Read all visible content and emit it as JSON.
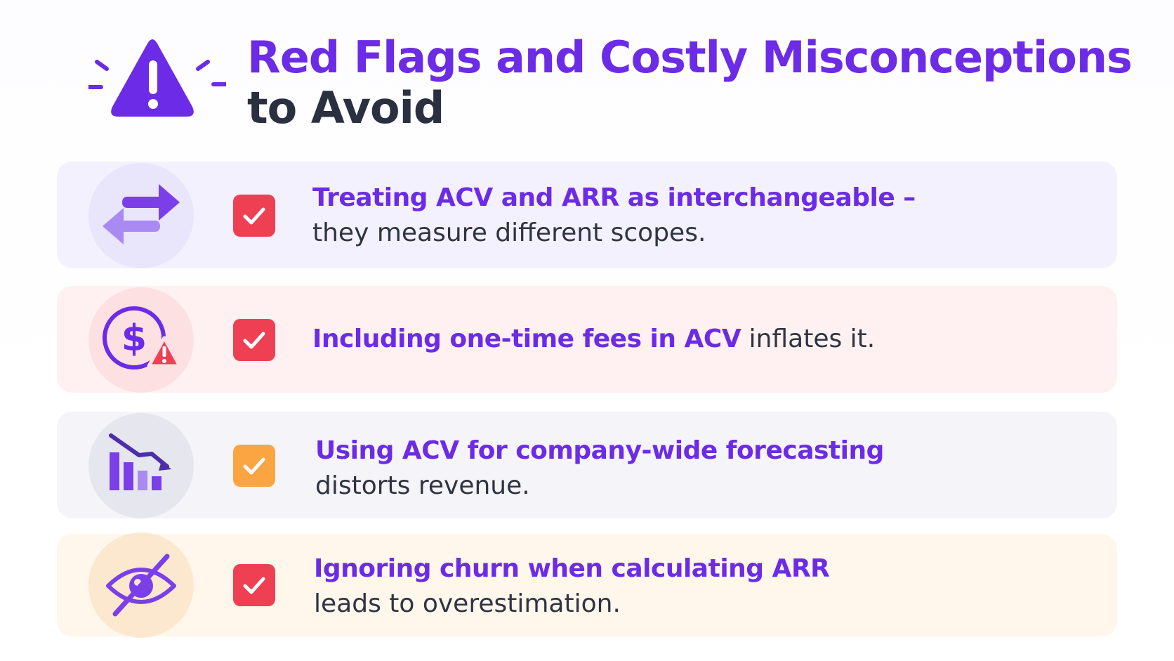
{
  "header": {
    "icon": "warning-triangle-icon",
    "title_line1": "Red Flags and Costly Misconceptions",
    "title_line2": "to Avoid"
  },
  "colors": {
    "accent_purple": "#6c2be6",
    "dark_text": "#2b3040",
    "check_red": "#ef3f53",
    "check_orange": "#fba442"
  },
  "items": [
    {
      "icon": "swap-arrows-icon",
      "check": "checkbox-checked-icon",
      "bold": "Treating ACV and ARR as interchangeable –",
      "rest": "they measure different scopes."
    },
    {
      "icon": "dollar-warning-icon",
      "check": "checkbox-checked-icon",
      "bold": "Including one-time fees in ACV",
      "rest": "inflates it."
    },
    {
      "icon": "declining-chart-icon",
      "check": "checkbox-checked-icon",
      "bold": "Using ACV for company-wide forecasting",
      "rest": "distorts revenue."
    },
    {
      "icon": "eye-slash-icon",
      "check": "checkbox-checked-icon",
      "bold": "Ignoring churn when calculating ARR",
      "rest": "leads to overestimation."
    }
  ]
}
